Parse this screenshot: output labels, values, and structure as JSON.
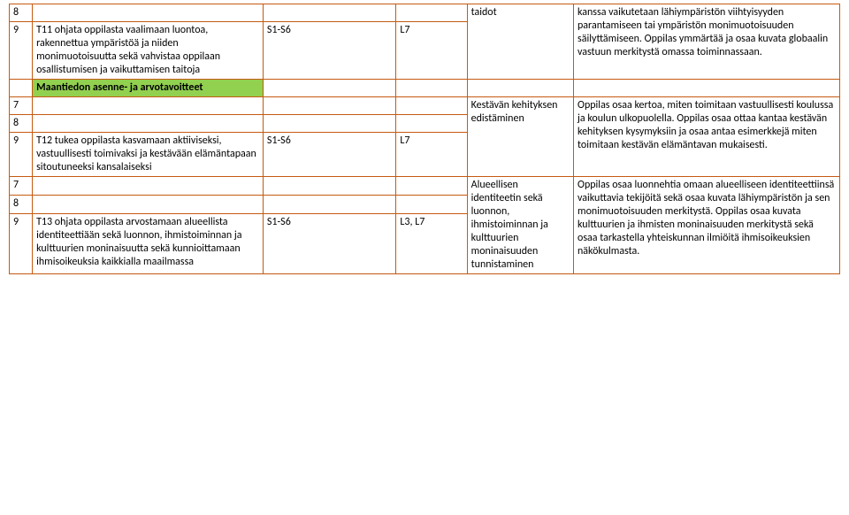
{
  "border_color": "#c55a11",
  "green_bg": "#92d050",
  "rows": {
    "r1_num": "8",
    "r1_c5": "taidot",
    "r1_c6": "kanssa vaikutetaan lähiympäristön viihtyisyyden parantamiseen tai ympäristön monimuotoisuuden säilyttämiseen. Oppilas ymmärtää ja osaa kuvata globaalin vastuun merkitystä omassa toiminnassaan.",
    "r2_num": "9",
    "r2_c2": "T11 ohjata oppilasta vaalimaan luontoa, rakennettua ympäristöä ja niiden monimuotoisuutta sekä vahvistaa oppilaan osallistumisen ja vaikuttamisen taitoja",
    "r2_c3": "S1-S6",
    "r2_c4": "L7",
    "r3_c2": "Maantiedon asenne- ja arvotavoitteet",
    "r4_num": "7",
    "r4_c5": "Kestävän kehityksen edistäminen",
    "r4_c6": "Oppilas osaa kertoa, miten toimitaan vastuullisesti koulussa ja koulun ulkopuolella. Oppilas osaa ottaa kantaa kestävän kehityksen kysymyksiin ja osaa antaa esimerkkejä miten toimitaan kestävän elämäntavan mukaisesti.",
    "r5_num": "8",
    "r6_num": "9",
    "r6_c2": "T12 tukea oppilasta kasvamaan aktiiviseksi, vastuullisesti toimivaksi ja kestävään elämäntapaan sitoutuneeksi kansalaiseksi",
    "r6_c3": "S1-S6",
    "r6_c4": "L7",
    "r7_num": "7",
    "r7_c5": "Alueellisen identiteetin sekä luonnon, ihmistoiminnan ja kulttuurien moninaisuuden tunnistaminen",
    "r7_c6": "Oppilas osaa luonnehtia omaan alueelliseen identiteettiinsä vaikuttavia tekijöitä sekä osaa kuvata lähiympäristön ja sen monimuotoisuuden merkitystä. Oppilas osaa kuvata kulttuurien ja ihmisten moninaisuuden merkitystä sekä osaa tarkastella yhteiskunnan ilmiöitä ihmisoikeuksien näkökulmasta.",
    "r8_num": "8",
    "r9_num": "9",
    "r9_c2": "T13 ohjata oppilasta arvostamaan alueellista identiteettiään sekä luonnon, ihmistoiminnan ja kulttuurien moninaisuutta sekä kunnioittamaan ihmisoikeuksia kaikkialla maailmassa",
    "r9_c3": "S1-S6",
    "r9_c4": "L3, L7"
  }
}
